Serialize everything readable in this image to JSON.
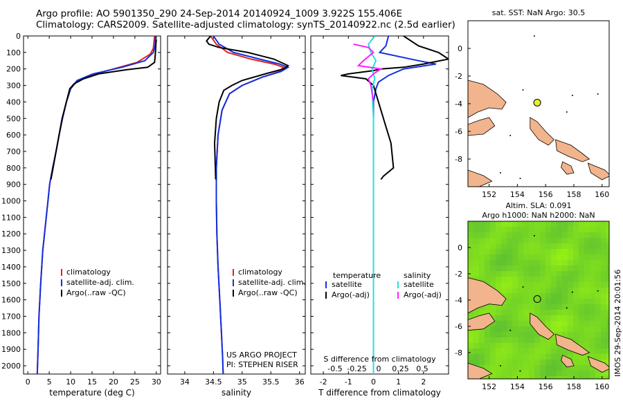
{
  "header": {
    "line1": "Argo profile: AO 5901350_290 24-Sep-2014 20140924_1009 3.922S 155.406E",
    "line2": "Climatology: CARS2009. Satellite-adjusted climatology: synTS_20140922.nc (2.5d earlier)"
  },
  "side_stamp": "IMOS 29-Sep-2014 20:01:56",
  "colors": {
    "climatology": "#e02020",
    "satellite": "#1030e0",
    "argo": "#000000",
    "cyan": "#20e0e0",
    "magenta": "#ff20ff",
    "land": "#f2b48c",
    "marker": "#e8ee30"
  },
  "chart_data": [
    {
      "type": "line",
      "panel": "temperature",
      "xlabel": "temperature (deg C)",
      "ylabel": "",
      "xlim": [
        -1,
        31
      ],
      "ylim": [
        2050,
        0
      ],
      "xticks": [
        0,
        5,
        10,
        15,
        20,
        25,
        30
      ],
      "yticks": [
        0,
        100,
        200,
        300,
        400,
        500,
        600,
        700,
        800,
        900,
        1000,
        1100,
        1200,
        1300,
        1400,
        1500,
        1600,
        1700,
        1800,
        1900,
        2000
      ],
      "legend": [
        "climatology",
        "satellite-adj. clim.",
        "Argo(..raw -QC)"
      ],
      "series": [
        {
          "name": "climatology",
          "color": "climatology",
          "x": [
            29.6,
            29.3,
            28.6,
            25.5,
            20.0,
            14.5,
            11.3,
            10.0,
            9.0,
            8.1,
            7.3,
            6.6,
            5.8,
            5.1,
            4.7,
            4.3,
            3.5,
            3.0,
            2.6,
            2.4,
            2.2
          ],
          "y": [
            0,
            75,
            110,
            160,
            200,
            240,
            280,
            320,
            400,
            500,
            600,
            700,
            800,
            900,
            1000,
            1100,
            1300,
            1500,
            1700,
            1900,
            2050
          ]
        },
        {
          "name": "satellite-adj. clim.",
          "color": "satellite",
          "x": [
            29.8,
            29.7,
            29.3,
            27.3,
            22.0,
            15.2,
            11.5,
            10.0,
            9.0,
            8.1,
            7.3,
            6.6,
            5.8,
            5.1,
            4.7,
            4.3,
            3.5,
            3.0,
            2.6,
            2.4,
            2.2
          ],
          "y": [
            0,
            60,
            100,
            150,
            190,
            230,
            270,
            320,
            400,
            500,
            600,
            700,
            800,
            900,
            1000,
            1100,
            1300,
            1500,
            1700,
            1900,
            2050
          ]
        },
        {
          "name": "Argo(..raw -QC)",
          "color": "argo",
          "x": [
            30.0,
            29.9,
            29.8,
            29.6,
            28.0,
            23.0,
            16.5,
            13.0,
            10.8,
            9.8,
            9.0,
            8.0,
            7.3,
            6.6,
            5.9,
            5.4
          ],
          "y": [
            20,
            50,
            100,
            160,
            190,
            205,
            230,
            260,
            290,
            320,
            400,
            500,
            600,
            700,
            800,
            870
          ]
        }
      ]
    },
    {
      "type": "line",
      "panel": "salinity",
      "xlabel": "salinity",
      "ylabel": "",
      "xlim": [
        33.7,
        36.1
      ],
      "ylim": [
        2050,
        0
      ],
      "xticks": [
        34,
        34.5,
        35,
        35.5,
        36
      ],
      "legend": [
        "climatology",
        "satellite-adj. clim.",
        "Argo(..raw -QC)"
      ],
      "annotation": [
        "US ARGO PROJECT",
        "PI: STEPHEN RISER"
      ],
      "series": [
        {
          "name": "climatology",
          "color": "climatology",
          "x": [
            34.45,
            34.55,
            34.75,
            35.15,
            35.55,
            35.72,
            35.65,
            35.35,
            35.0,
            34.78,
            34.65,
            34.58,
            34.55,
            34.55,
            34.56,
            34.58,
            34.61,
            34.64,
            34.66,
            34.67
          ],
          "y": [
            0,
            50,
            100,
            140,
            170,
            190,
            215,
            250,
            300,
            350,
            450,
            600,
            800,
            1000,
            1200,
            1400,
            1600,
            1800,
            1950,
            2050
          ]
        },
        {
          "name": "satellite-adj. clim.",
          "color": "satellite",
          "x": [
            34.5,
            34.6,
            34.85,
            35.3,
            35.65,
            35.8,
            35.68,
            35.35,
            35.0,
            34.78,
            34.65,
            34.58,
            34.55,
            34.55,
            34.56,
            34.58,
            34.61,
            34.64,
            34.66,
            34.67
          ],
          "y": [
            0,
            50,
            100,
            140,
            170,
            190,
            215,
            250,
            300,
            350,
            450,
            600,
            800,
            1000,
            1200,
            1400,
            1600,
            1800,
            1950,
            2050
          ]
        },
        {
          "name": "Argo(..raw -QC)",
          "color": "argo",
          "x": [
            34.45,
            34.38,
            34.42,
            34.6,
            35.1,
            35.55,
            35.8,
            35.72,
            35.4,
            35.0,
            34.82,
            34.68,
            34.6,
            34.55,
            34.52,
            34.54
          ],
          "y": [
            0,
            30,
            50,
            70,
            100,
            140,
            180,
            200,
            230,
            270,
            300,
            330,
            400,
            500,
            650,
            870
          ]
        }
      ]
    },
    {
      "type": "line",
      "panel": "differences",
      "xlabel": "T difference from climatology",
      "ylabel": "",
      "xlim": [
        -2.5,
        3
      ],
      "ylim": [
        2050,
        0
      ],
      "xticks": [
        -2,
        -1,
        0,
        1,
        2
      ],
      "xlabel_top": "S difference from climatology",
      "xticks_s": [
        -0.5,
        -0.25,
        0,
        0.25,
        0.5
      ],
      "legend_title_t": "temperature",
      "legend_title_s": "salinity",
      "legend": [
        "satellite",
        "Argo(-adj)",
        "satellite",
        "Argo(-adj)"
      ],
      "series": [
        {
          "name": "satellite",
          "color": "satellite",
          "x": [
            0.6,
            0.5,
            0.25,
            1.8,
            2.5,
            1.2,
            0.6,
            0.2,
            0.1,
            0.0,
            0.0,
            0.0,
            0.0,
            0.0
          ],
          "y": [
            0,
            60,
            100,
            150,
            170,
            200,
            240,
            280,
            320,
            400,
            600,
            1000,
            1500,
            2050
          ]
        },
        {
          "name": "Argo(-adj)",
          "color": "argo",
          "x": [
            1.2,
            1.8,
            2.6,
            3.0,
            2.0,
            1.2,
            0.3,
            0.0,
            -0.5,
            -1.0,
            -1.3,
            -0.3,
            0.0,
            0.2,
            0.5,
            0.7,
            0.8,
            0.4,
            0.3
          ],
          "y": [
            0,
            60,
            100,
            140,
            170,
            190,
            200,
            210,
            220,
            230,
            240,
            260,
            300,
            400,
            550,
            650,
            800,
            850,
            870
          ]
        },
        {
          "name": "satellite",
          "color": "cyan",
          "x": [
            0.05,
            -0.2,
            -0.1,
            0.1,
            -0.05,
            0.05,
            -0.05,
            0.0,
            0.0,
            0.0
          ],
          "y": [
            0,
            50,
            100,
            150,
            200,
            260,
            320,
            500,
            1000,
            2050
          ]
        },
        {
          "name": "Argo(-adj)",
          "color": "magenta",
          "x": [
            -0.8,
            -0.2,
            0.0,
            -0.4,
            -0.6,
            0.3,
            0.0,
            -0.2,
            -0.1,
            0.0
          ],
          "y": [
            50,
            70,
            100,
            150,
            180,
            200,
            230,
            260,
            300,
            400
          ]
        }
      ]
    },
    {
      "type": "map",
      "panel": "sst",
      "title": "sat. SST: NaN Argo: 30.5",
      "xlim": [
        150.5,
        160.5
      ],
      "ylim": [
        -10,
        2
      ],
      "xticks": [
        152,
        154,
        156,
        158,
        160
      ],
      "yticks": [
        0,
        -2,
        -4,
        -6,
        -8
      ],
      "marker": {
        "lon": 155.406,
        "lat": -3.922
      }
    },
    {
      "type": "map",
      "panel": "sla",
      "title": "Altim. SLA: 0.091",
      "subtitle": "Argo h1000: NaN h2000: NaN",
      "xlim": [
        150.5,
        160.5
      ],
      "ylim": [
        -10,
        2
      ],
      "xticks": [
        152,
        154,
        156,
        158,
        160
      ],
      "yticks": [
        0,
        -2,
        -4,
        -6,
        -8
      ],
      "marker": {
        "lon": 155.406,
        "lat": -3.922
      }
    }
  ]
}
